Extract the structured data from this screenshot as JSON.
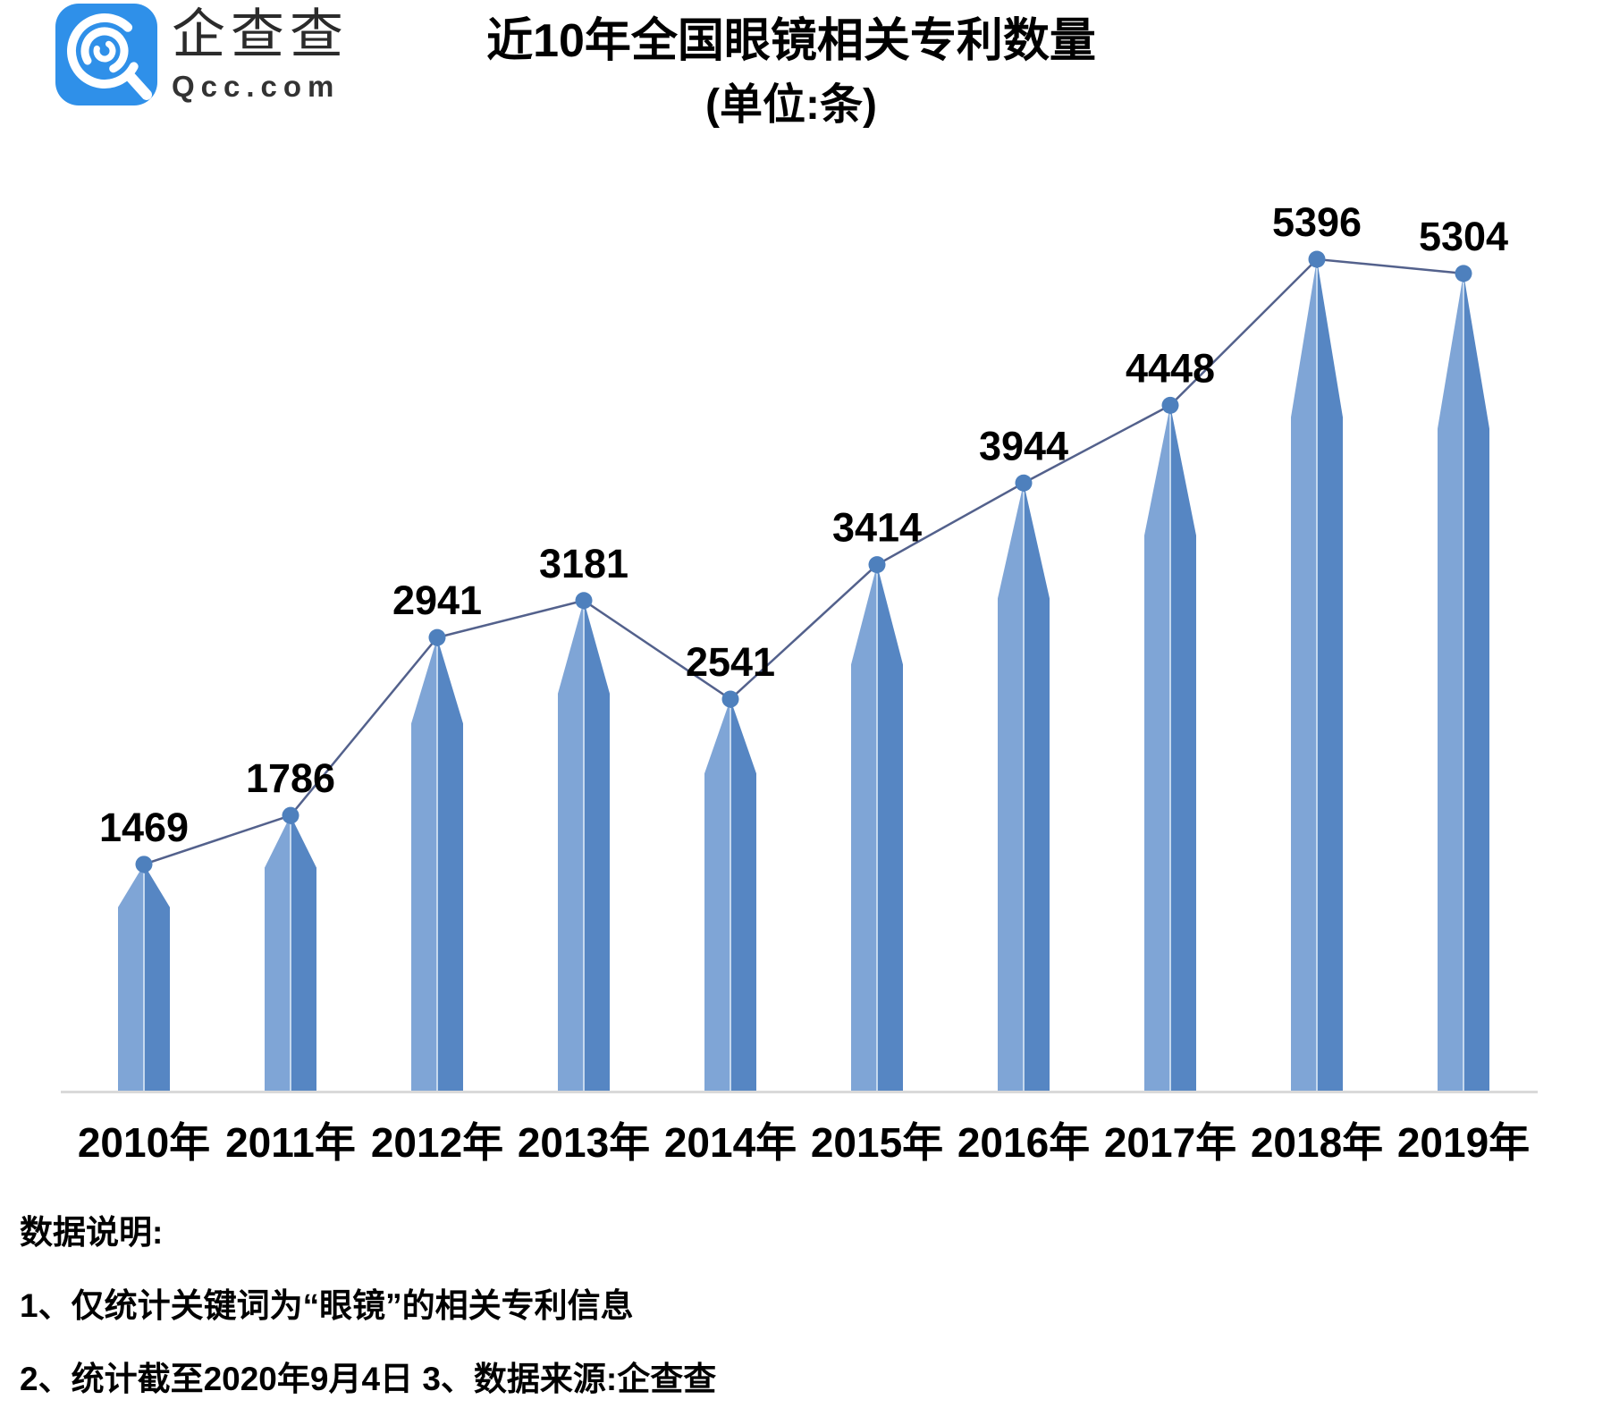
{
  "header": {
    "logo": {
      "cn": "企查查",
      "en": "Qcc.com"
    },
    "title_line1": "近10年全国眼镜相关专利数量",
    "title_line2": "(单位:条)"
  },
  "chart_data": {
    "type": "bar",
    "line_overlay": true,
    "title": "近10年全国眼镜相关专利数量",
    "subtitle": "(单位:条)",
    "categories": [
      "2010年",
      "2011年",
      "2012年",
      "2013年",
      "2014年",
      "2015年",
      "2016年",
      "2017年",
      "2018年",
      "2019年"
    ],
    "values": [
      1469,
      1786,
      2941,
      3181,
      2541,
      3414,
      3944,
      4448,
      5396,
      5304
    ],
    "xlabel": "",
    "ylabel": "",
    "ylim": [
      0,
      5700
    ],
    "grid": false,
    "legend": "none",
    "data_labels": true,
    "colors": {
      "bar_left": "#7FA5D6",
      "bar_right": "#5686C3",
      "bar_divider": "#CFE0F2",
      "line": "#53618C",
      "marker": "#4E80BD",
      "axis": "#D9D9D9",
      "label_text": "#000000",
      "logo_bg": "#2F90E9"
    }
  },
  "footer": {
    "heading": "数据说明:",
    "note1": "1、仅统计关键词为“眼镜”的相关专利信息",
    "note2": "2、统计截至2020年9月4日  3、数据来源:企查查"
  }
}
